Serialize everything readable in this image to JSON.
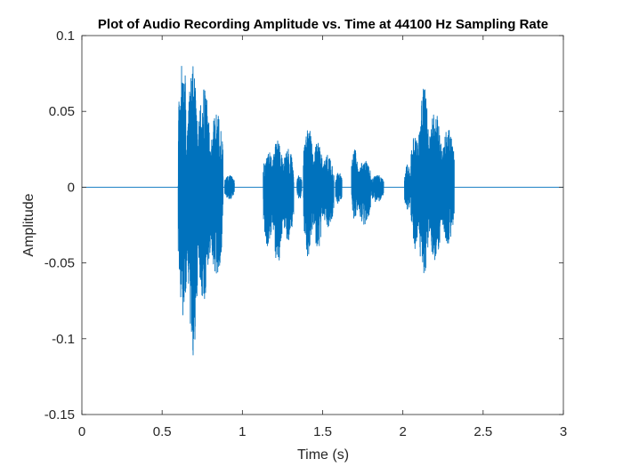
{
  "chart_data": {
    "type": "line",
    "title": "Plot of Audio Recording Amplitude vs. Time at 44100 Hz Sampling Rate",
    "xlabel": "Time (s)",
    "ylabel": "Amplitude",
    "xlim": [
      0,
      3
    ],
    "ylim": [
      -0.15,
      0.1
    ],
    "xticks": [
      0,
      0.5,
      1,
      1.5,
      2,
      2.5,
      3
    ],
    "xtick_labels": [
      "0",
      "0.5",
      "1",
      "1.5",
      "2",
      "2.5",
      "3"
    ],
    "yticks": [
      -0.15,
      -0.1,
      -0.05,
      0,
      0.05,
      0.1
    ],
    "ytick_labels": [
      "-0.15",
      "-0.1",
      "-0.05",
      "0",
      "0.05",
      "0.1"
    ],
    "grid": false,
    "line_color": "#0072BD",
    "series": [
      {
        "segments": [
          {
            "t0": 0.6,
            "t1": 0.66,
            "max": 0.086,
            "min": -0.087
          },
          {
            "t0": 0.66,
            "t1": 0.72,
            "max": 0.08,
            "min": -0.117
          },
          {
            "t0": 0.72,
            "t1": 0.8,
            "max": 0.065,
            "min": -0.075
          },
          {
            "t0": 0.8,
            "t1": 0.88,
            "max": 0.05,
            "min": -0.06
          },
          {
            "t0": 0.89,
            "t1": 0.95,
            "max": 0.008,
            "min": -0.008
          },
          {
            "t0": 1.13,
            "t1": 1.19,
            "max": 0.025,
            "min": -0.04
          },
          {
            "t0": 1.19,
            "t1": 1.25,
            "max": 0.032,
            "min": -0.052
          },
          {
            "t0": 1.25,
            "t1": 1.32,
            "max": 0.025,
            "min": -0.035
          },
          {
            "t0": 1.34,
            "t1": 1.37,
            "max": 0.008,
            "min": -0.008
          },
          {
            "t0": 1.38,
            "t1": 1.44,
            "max": 0.04,
            "min": -0.046
          },
          {
            "t0": 1.44,
            "t1": 1.5,
            "max": 0.03,
            "min": -0.042
          },
          {
            "t0": 1.5,
            "t1": 1.57,
            "max": 0.022,
            "min": -0.028
          },
          {
            "t0": 1.58,
            "t1": 1.62,
            "max": 0.01,
            "min": -0.012
          },
          {
            "t0": 1.68,
            "t1": 1.72,
            "max": 0.025,
            "min": -0.022
          },
          {
            "t0": 1.72,
            "t1": 1.8,
            "max": 0.018,
            "min": -0.025
          },
          {
            "t0": 1.8,
            "t1": 1.88,
            "max": 0.008,
            "min": -0.01
          },
          {
            "t0": 2.01,
            "t1": 2.05,
            "max": 0.015,
            "min": -0.015
          },
          {
            "t0": 2.05,
            "t1": 2.1,
            "max": 0.038,
            "min": -0.042
          },
          {
            "t0": 2.1,
            "t1": 2.16,
            "max": 0.068,
            "min": -0.063
          },
          {
            "t0": 2.16,
            "t1": 2.24,
            "max": 0.05,
            "min": -0.05
          },
          {
            "t0": 2.24,
            "t1": 2.32,
            "max": 0.04,
            "min": -0.038
          }
        ]
      }
    ]
  }
}
